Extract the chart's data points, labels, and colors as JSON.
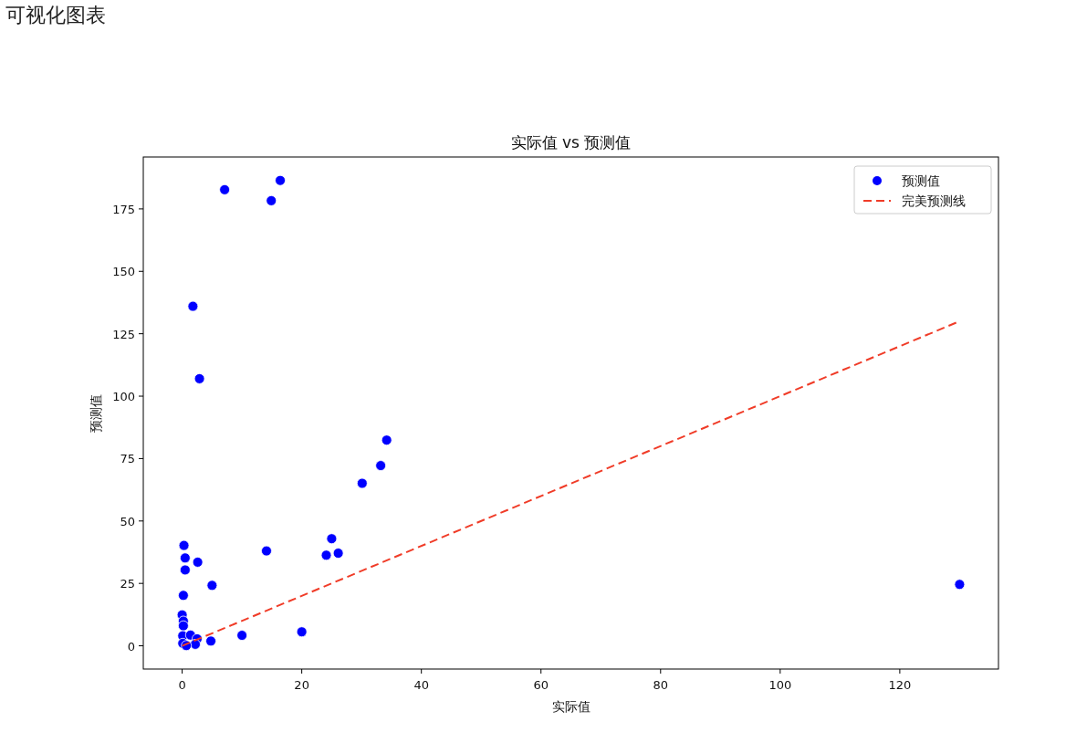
{
  "chart_data": {
    "type": "scatter",
    "title": "实际值 vs 预测值",
    "xlabel": "实际值",
    "ylabel": "预测值",
    "annotations": [
      "可视化图表"
    ],
    "series": [
      {
        "name": "预测值",
        "color": "#0000ff",
        "marker": "circle",
        "x": [
          7.1,
          14.9,
          16.4,
          1.8,
          2.9,
          34.2,
          33.2,
          30.1,
          25.0,
          24.1,
          26.1,
          14.1,
          0.3,
          0.5,
          0.5,
          2.6,
          5.0,
          0.2,
          0.0,
          0.2,
          0.2,
          0.1,
          1.4,
          2.5,
          2.2,
          0.1,
          0.7,
          4.8,
          10.0,
          20.0,
          130
        ],
        "values": [
          182.7,
          178.3,
          186.4,
          136,
          107,
          82.4,
          72.2,
          65.1,
          42.9,
          36.3,
          37.1,
          38.0,
          40.2,
          35.2,
          30.4,
          33.5,
          24.2,
          20.2,
          12.4,
          9.9,
          8.0,
          4.0,
          4.3,
          2.8,
          0.6,
          1.0,
          0.1,
          1.9,
          4.2,
          5.6,
          24.6
        ]
      },
      {
        "name": "完美预测线",
        "type": "line",
        "color": "#f03c28",
        "line_style": "dashed",
        "x": [
          0,
          130
        ],
        "values": [
          0,
          130
        ]
      }
    ],
    "xlim": [
      -6.5,
      136.5
    ],
    "ylim": [
      -9.3,
      195.8
    ],
    "xticks": [
      0,
      20,
      40,
      60,
      80,
      100,
      120
    ],
    "yticks": [
      0,
      25,
      50,
      75,
      100,
      125,
      150,
      175
    ],
    "legend": "top right"
  }
}
